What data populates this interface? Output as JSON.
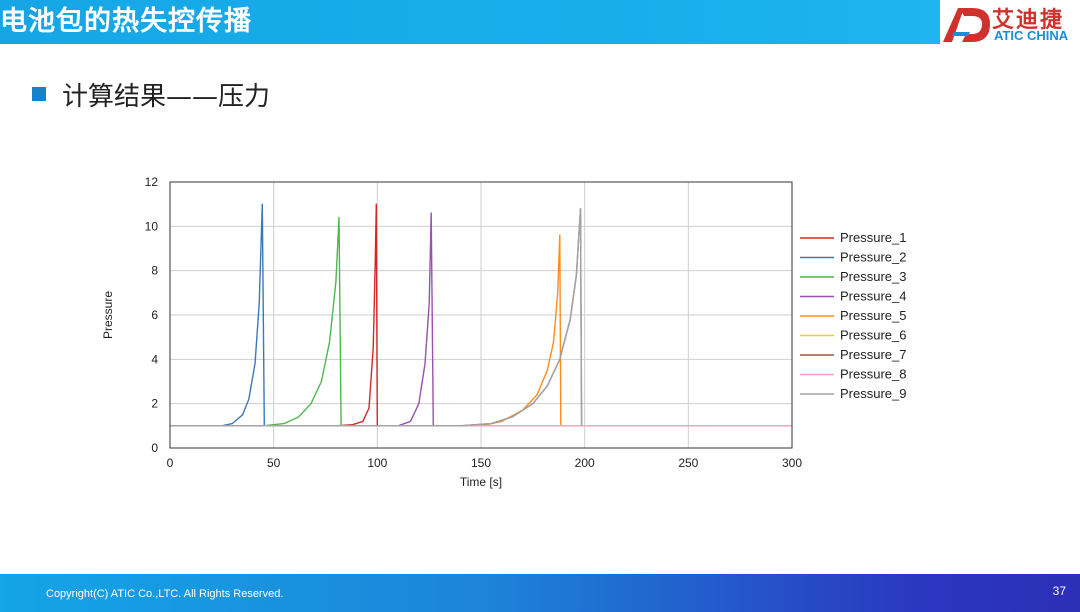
{
  "header": {
    "title": "电池包的热失控传播"
  },
  "logo": {
    "cn": "艾迪捷",
    "en": "ATIC CHINA"
  },
  "section": {
    "heading": "计算结果——压力"
  },
  "colors": {
    "header_blue": "#16a6e6",
    "bullet_blue": "#1483c7",
    "logo_red": "#d0312d"
  },
  "footer": {
    "copyright": "Copyright(C) ATIC Co.,LTC. All Rights Reserved.",
    "page": "37"
  },
  "chart_data": {
    "type": "line",
    "title": "",
    "xlabel": "Time [s]",
    "ylabel": "Pressure",
    "xlim": [
      0,
      300
    ],
    "ylim": [
      0,
      12
    ],
    "xticks": [
      0,
      50,
      100,
      150,
      200,
      250,
      300
    ],
    "yticks": [
      0,
      2,
      4,
      6,
      8,
      10,
      12
    ],
    "grid": true,
    "legend_position": "right",
    "baseline": 1.0,
    "series": [
      {
        "name": "Pressure_1",
        "color": "#d62728",
        "x": [
          0,
          80,
          88,
          93,
          96,
          98,
          99,
          99.5,
          100
        ],
        "y": [
          1,
          1,
          1.05,
          1.2,
          1.8,
          4.5,
          8.5,
          11.0,
          1
        ]
      },
      {
        "name": "Pressure_2",
        "color": "#3b79b6",
        "x": [
          0,
          25,
          30,
          35,
          38,
          41,
          43,
          44.5,
          45.5
        ],
        "y": [
          1,
          1,
          1.1,
          1.5,
          2.2,
          3.8,
          6.5,
          11.0,
          1
        ]
      },
      {
        "name": "Pressure_3",
        "color": "#4cb84c",
        "x": [
          0,
          45,
          55,
          62,
          68,
          73,
          77,
          80,
          81.5,
          82.5
        ],
        "y": [
          1,
          1,
          1.1,
          1.4,
          2.0,
          3.0,
          4.8,
          7.5,
          10.4,
          1
        ]
      },
      {
        "name": "Pressure_4",
        "color": "#9b4fb3",
        "x": [
          0,
          110,
          116,
          120,
          123,
          125,
          126,
          127
        ],
        "y": [
          1,
          1,
          1.2,
          2.0,
          3.8,
          6.5,
          10.6,
          1
        ]
      },
      {
        "name": "Pressure_5",
        "color": "#ff8c1a",
        "x": [
          0,
          150,
          160,
          170,
          177,
          182,
          185,
          187,
          188,
          188.5
        ],
        "y": [
          1,
          1,
          1.2,
          1.7,
          2.4,
          3.5,
          4.8,
          7.0,
          9.6,
          1
        ]
      },
      {
        "name": "Pressure_6",
        "color": "#e8d21a",
        "x": [
          0,
          300
        ],
        "y": [
          1,
          1
        ]
      },
      {
        "name": "Pressure_7",
        "color": "#9a5a47",
        "x": [
          0,
          140,
          155,
          165,
          175,
          182,
          188,
          193,
          196,
          198,
          198.5
        ],
        "y": [
          1,
          1,
          1.1,
          1.4,
          2.0,
          2.8,
          4.0,
          5.8,
          7.8,
          10.8,
          1
        ]
      },
      {
        "name": "Pressure_8",
        "color": "#f2a0c6",
        "x": [
          0,
          300
        ],
        "y": [
          1,
          1
        ]
      },
      {
        "name": "Pressure_9",
        "color": "#a3a3a3",
        "x": [
          0,
          140,
          155,
          165,
          175,
          182,
          188,
          193,
          196,
          198,
          198.5
        ],
        "y": [
          1,
          1,
          1.1,
          1.4,
          2.0,
          2.8,
          4.0,
          5.8,
          7.8,
          10.8,
          1
        ]
      }
    ]
  }
}
